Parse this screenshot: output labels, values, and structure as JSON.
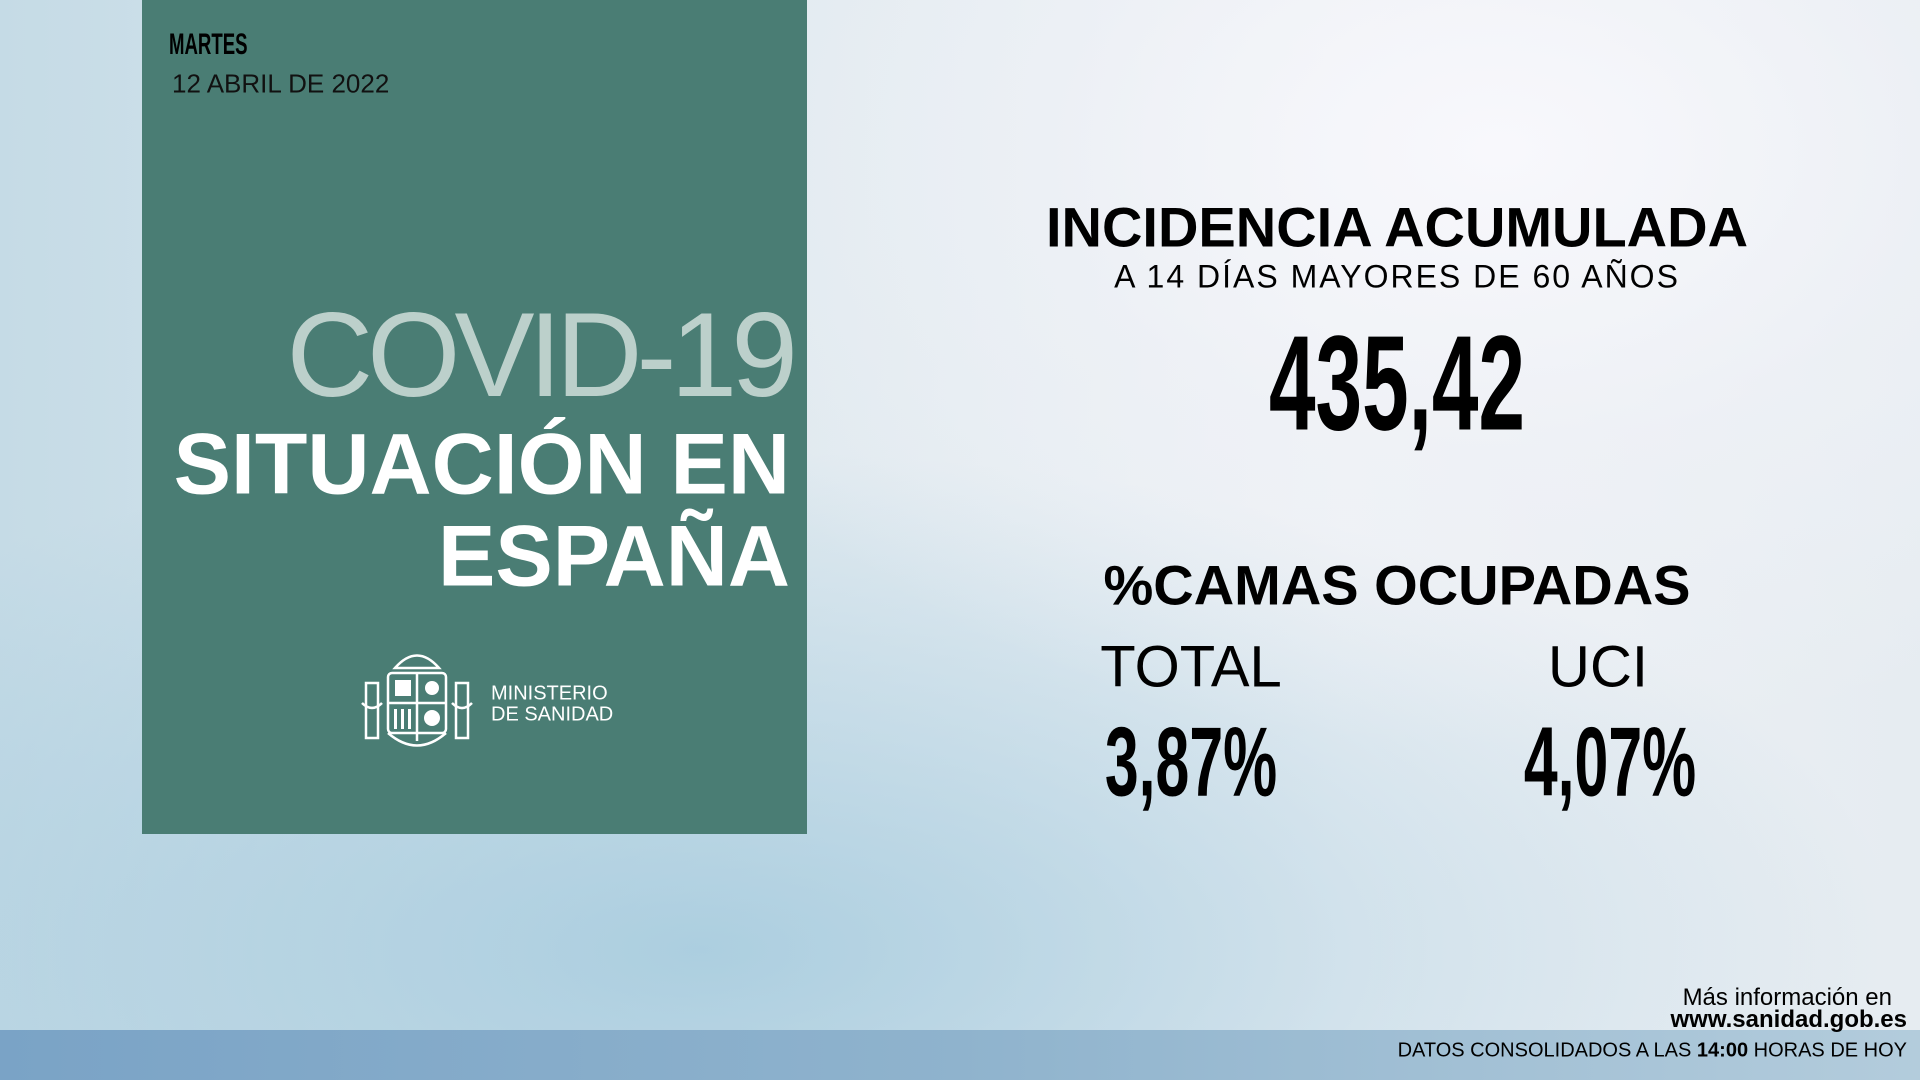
{
  "panel": {
    "weekday": "MARTES",
    "date": "12 ABRIL DE 2022",
    "logo_text": "COVID-19",
    "title_lines": [
      "SITUACIÓN EN",
      "ESPAÑA"
    ],
    "ministry_lines": [
      "MINISTERIO",
      "DE SANIDAD"
    ]
  },
  "incidence": {
    "title": "INCIDENCIA ACUMULADA",
    "subtitle": "A 14 DÍAS MAYORES DE 60 AÑOS",
    "value": "435,42"
  },
  "beds": {
    "title": "%CAMAS OCUPADAS",
    "items": [
      {
        "label": "TOTAL",
        "value": "3,87%"
      },
      {
        "label": "UCI",
        "value": "4,07%"
      }
    ]
  },
  "footer": {
    "more_info": "Más información en",
    "url": "www.sanidad.gob.es",
    "note": [
      "DATOS CONSOLIDADOS A LAS ",
      "14:00",
      " HORAS DE HOY"
    ]
  }
}
